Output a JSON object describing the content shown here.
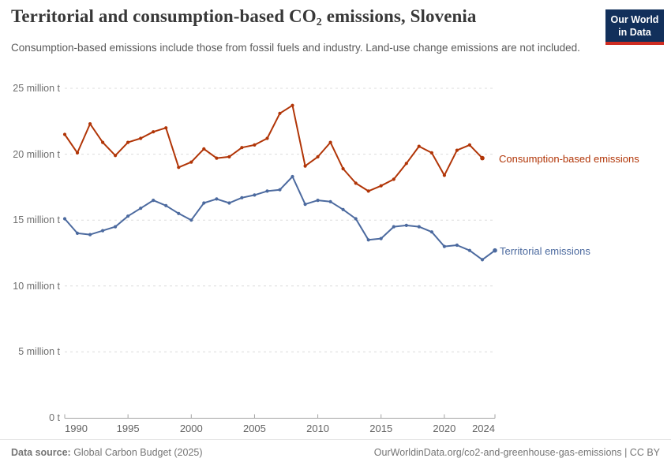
{
  "header": {
    "title_pre": "Territorial and consumption-based CO",
    "title_sub": "2",
    "title_post": " emissions, Slovenia",
    "subtitle": "Consumption-based emissions include those from fossil fuels and industry. Land-use change emissions are not included.",
    "logo_line1": "Our World",
    "logo_line2": "in Data",
    "logo_colors": {
      "background": "#12305b",
      "stripe": "#cf2d22"
    }
  },
  "chart_data": {
    "type": "line",
    "title": "Territorial and consumption-based CO2 emissions, Slovenia",
    "unit": "million t",
    "xlim": [
      1990,
      2024
    ],
    "ylim": [
      0,
      25
    ],
    "grid": "horizontal-dashed",
    "legend_position": "right-of-line-end",
    "xticks": [
      {
        "year": 1990,
        "label": "1990",
        "align": "left"
      },
      {
        "year": 1995,
        "label": "1995",
        "align": "center"
      },
      {
        "year": 2000,
        "label": "2000",
        "align": "center"
      },
      {
        "year": 2005,
        "label": "2005",
        "align": "center"
      },
      {
        "year": 2010,
        "label": "2010",
        "align": "center"
      },
      {
        "year": 2015,
        "label": "2015",
        "align": "center"
      },
      {
        "year": 2020,
        "label": "2020",
        "align": "center"
      },
      {
        "year": 2024,
        "label": "2024",
        "align": "right"
      }
    ],
    "yticks": [
      {
        "v": 0,
        "label": "0 t"
      },
      {
        "v": 5,
        "label": "5 million t"
      },
      {
        "v": 10,
        "label": "10 million t"
      },
      {
        "v": 15,
        "label": "15 million t"
      },
      {
        "v": 20,
        "label": "20 million t"
      },
      {
        "v": 25,
        "label": "25 million t"
      }
    ],
    "series": [
      {
        "name": "Consumption-based emissions",
        "color": "#b13507",
        "first_year": 1990,
        "last_year": 2023,
        "values": [
          21.5,
          20.1,
          22.3,
          20.9,
          19.9,
          20.9,
          21.2,
          21.7,
          22.0,
          19.0,
          19.4,
          20.4,
          19.7,
          19.8,
          20.5,
          20.7,
          21.2,
          23.1,
          23.7,
          19.1,
          19.8,
          20.9,
          18.9,
          17.8,
          17.2,
          17.6,
          18.1,
          19.3,
          20.6,
          20.1,
          18.4,
          20.3,
          20.7,
          19.7
        ]
      },
      {
        "name": "Territorial emissions",
        "color": "#4c6a9f",
        "first_year": 1990,
        "last_year": 2024,
        "values": [
          15.1,
          14.0,
          13.9,
          14.2,
          14.5,
          15.3,
          15.9,
          16.5,
          16.1,
          15.5,
          15.0,
          16.3,
          16.6,
          16.3,
          16.7,
          16.9,
          17.2,
          17.3,
          18.3,
          16.2,
          16.5,
          16.4,
          15.8,
          15.1,
          13.5,
          13.6,
          14.5,
          14.6,
          14.5,
          14.1,
          13.0,
          13.1,
          12.7,
          12.0,
          12.7
        ]
      }
    ]
  },
  "footer": {
    "source_label": "Data source:",
    "source_value": " Global Carbon Budget (2025)",
    "link": "OurWorldinData.org/co2-and-greenhouse-gas-emissions | CC BY"
  }
}
